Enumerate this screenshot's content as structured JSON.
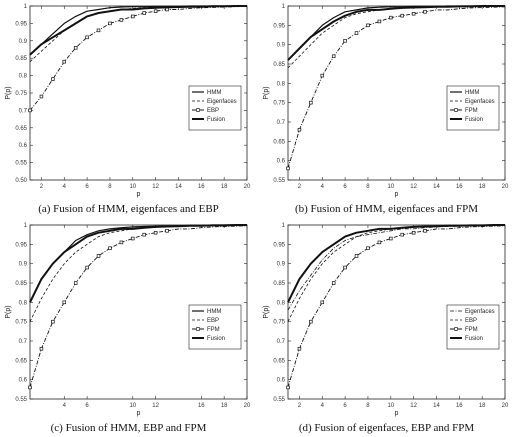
{
  "chart_data": [
    {
      "type": "line",
      "caption": "(a) Fusion of HMM, eigenfaces and EBP",
      "xlabel": "p",
      "ylabel": "P(p)",
      "xlim": [
        1,
        20
      ],
      "ylim": [
        0.5,
        1
      ],
      "xticks": [
        2,
        4,
        6,
        8,
        10,
        12,
        14,
        16,
        18,
        20
      ],
      "xtick_labels": [
        "2",
        "4",
        "6",
        "8",
        "10",
        "12",
        "14",
        "16",
        "18",
        "20"
      ],
      "yticks": [
        0.5,
        0.55,
        0.6,
        0.65,
        0.7,
        0.75,
        0.8,
        0.85,
        0.9,
        0.95,
        1
      ],
      "ytick_labels": [
        "0.50",
        "0.55",
        "0.6",
        "0.65",
        "0.7",
        "0.75",
        "0.8",
        "0.85",
        "0.9",
        "0.95",
        "1"
      ],
      "legend_position": "lower-right",
      "x": [
        1,
        2,
        3,
        4,
        5,
        6,
        7,
        8,
        9,
        10,
        11,
        12,
        13,
        14,
        15,
        16,
        17,
        18,
        19,
        20
      ],
      "series": [
        {
          "name": "HMM",
          "style": "solid",
          "width": 1.2,
          "marker": "none",
          "values": [
            0.86,
            0.89,
            0.92,
            0.95,
            0.97,
            0.985,
            0.99,
            0.995,
            0.997,
            0.998,
            0.998,
            0.999,
            0.999,
            0.999,
            1,
            1,
            1,
            1,
            1,
            1
          ]
        },
        {
          "name": "Eigenfaces",
          "style": "dashed",
          "width": 0.8,
          "marker": "none",
          "values": [
            0.84,
            0.87,
            0.9,
            0.93,
            0.95,
            0.97,
            0.98,
            0.985,
            0.99,
            0.993,
            0.995,
            0.996,
            0.997,
            0.998,
            0.998,
            0.999,
            0.999,
            1,
            1,
            1
          ]
        },
        {
          "name": "EBP",
          "style": "dashdot",
          "width": 0.9,
          "marker": "square",
          "values": [
            0.7,
            0.74,
            0.79,
            0.84,
            0.88,
            0.91,
            0.93,
            0.95,
            0.96,
            0.97,
            0.98,
            0.985,
            0.99,
            0.99,
            0.993,
            0.995,
            0.996,
            0.997,
            0.998,
            0.999
          ]
        },
        {
          "name": "Fusion",
          "style": "solid",
          "width": 2,
          "marker": "none",
          "values": [
            0.86,
            0.89,
            0.91,
            0.93,
            0.95,
            0.97,
            0.98,
            0.985,
            0.99,
            0.99,
            0.993,
            0.995,
            0.996,
            0.997,
            0.998,
            0.998,
            0.999,
            0.999,
            1,
            1
          ]
        }
      ]
    },
    {
      "type": "line",
      "caption": "(b) Fusion of HMM, eigenfaces and FPM",
      "xlabel": "p",
      "ylabel": "P(p)",
      "xlim": [
        1,
        20
      ],
      "ylim": [
        0.55,
        1
      ],
      "xticks": [
        2,
        4,
        6,
        8,
        10,
        12,
        14,
        16,
        18,
        20
      ],
      "xtick_labels": [
        "2",
        "4",
        "6",
        "8",
        "10",
        "12",
        "14",
        "16",
        "18",
        "20"
      ],
      "yticks": [
        0.55,
        0.6,
        0.65,
        0.7,
        0.75,
        0.8,
        0.85,
        0.9,
        0.95,
        1
      ],
      "ytick_labels": [
        "0.55",
        "0.6",
        "0.65",
        "0.7",
        "0.75",
        "0.8",
        "0.85",
        "0.9",
        "0.95",
        "1"
      ],
      "legend_position": "lower-right",
      "x": [
        1,
        2,
        3,
        4,
        5,
        6,
        7,
        8,
        9,
        10,
        11,
        12,
        13,
        14,
        15,
        16,
        17,
        18,
        19,
        20
      ],
      "series": [
        {
          "name": "HMM",
          "style": "solid",
          "width": 1.2,
          "marker": "none",
          "values": [
            0.86,
            0.89,
            0.92,
            0.95,
            0.97,
            0.985,
            0.99,
            0.995,
            0.997,
            0.998,
            0.998,
            0.999,
            0.999,
            0.999,
            1,
            1,
            1,
            1,
            1,
            1
          ]
        },
        {
          "name": "Eigenfaces",
          "style": "dashed",
          "width": 0.8,
          "marker": "none",
          "values": [
            0.84,
            0.87,
            0.9,
            0.93,
            0.95,
            0.97,
            0.98,
            0.985,
            0.99,
            0.993,
            0.995,
            0.996,
            0.997,
            0.998,
            0.998,
            0.999,
            0.999,
            1,
            1,
            1
          ]
        },
        {
          "name": "FPM",
          "style": "dashdot",
          "width": 0.9,
          "marker": "square",
          "values": [
            0.58,
            0.68,
            0.75,
            0.82,
            0.87,
            0.91,
            0.93,
            0.95,
            0.96,
            0.97,
            0.975,
            0.98,
            0.985,
            0.99,
            0.99,
            0.993,
            0.995,
            0.996,
            0.997,
            0.998
          ]
        },
        {
          "name": "Fusion",
          "style": "solid",
          "width": 2,
          "marker": "none",
          "values": [
            0.86,
            0.89,
            0.92,
            0.94,
            0.96,
            0.975,
            0.985,
            0.99,
            0.99,
            0.993,
            0.995,
            0.996,
            0.997,
            0.998,
            0.998,
            0.999,
            0.999,
            1,
            1,
            1
          ]
        }
      ]
    },
    {
      "type": "line",
      "caption": "(c) Fusion of HMM, EBP and FPM",
      "xlabel": "p",
      "ylabel": "P(p)",
      "xlim": [
        1,
        20
      ],
      "ylim": [
        0.55,
        1
      ],
      "xticks": [
        4,
        6,
        10,
        12,
        16,
        18,
        20
      ],
      "xtick_labels": [
        "4",
        "6",
        "10",
        "12",
        "16",
        "18",
        "20"
      ],
      "yticks": [
        0.55,
        0.6,
        0.65,
        0.7,
        0.75,
        0.8,
        0.85,
        0.9,
        0.95,
        1
      ],
      "ytick_labels": [
        "0.55",
        "0.6",
        "0.65",
        "0.7",
        "0.75",
        "0.8",
        "0.85",
        "0.9",
        "0.95",
        "1"
      ],
      "legend_position": "lower-right",
      "x": [
        1,
        2,
        3,
        4,
        5,
        6,
        7,
        8,
        9,
        10,
        11,
        12,
        13,
        14,
        15,
        16,
        17,
        18,
        19,
        20
      ],
      "series": [
        {
          "name": "HMM",
          "style": "solid",
          "width": 1.2,
          "marker": "none",
          "values": [
            0.8,
            0.86,
            0.9,
            0.93,
            0.96,
            0.975,
            0.985,
            0.99,
            0.993,
            0.995,
            0.996,
            0.997,
            0.998,
            0.998,
            0.999,
            0.999,
            1,
            1,
            1,
            1
          ]
        },
        {
          "name": "EBP",
          "style": "dashed",
          "width": 0.8,
          "marker": "none",
          "values": [
            0.75,
            0.81,
            0.86,
            0.9,
            0.93,
            0.95,
            0.97,
            0.98,
            0.985,
            0.99,
            0.993,
            0.995,
            0.996,
            0.997,
            0.998,
            0.998,
            0.999,
            0.999,
            1,
            1
          ]
        },
        {
          "name": "FPM",
          "style": "dashdot",
          "width": 0.9,
          "marker": "square",
          "values": [
            0.58,
            0.68,
            0.75,
            0.8,
            0.85,
            0.89,
            0.92,
            0.94,
            0.955,
            0.965,
            0.975,
            0.98,
            0.985,
            0.99,
            0.99,
            0.993,
            0.995,
            0.996,
            0.997,
            0.998
          ]
        },
        {
          "name": "Fusion",
          "style": "solid",
          "width": 2,
          "marker": "none",
          "values": [
            0.8,
            0.86,
            0.9,
            0.93,
            0.95,
            0.97,
            0.98,
            0.985,
            0.99,
            0.99,
            0.993,
            0.995,
            0.996,
            0.997,
            0.998,
            0.998,
            0.999,
            0.999,
            1,
            1
          ]
        }
      ]
    },
    {
      "type": "line",
      "caption": "(d) Fusion of eigenfaces, EBP and FPM",
      "xlabel": "p",
      "ylabel": "P(p)",
      "xlim": [
        1,
        20
      ],
      "ylim": [
        0.55,
        1
      ],
      "xticks": [
        2,
        4,
        6,
        8,
        10,
        12,
        14,
        16,
        18,
        20
      ],
      "xtick_labels": [
        "2",
        "4",
        "6",
        "8",
        "10",
        "12",
        "14",
        "16",
        "18",
        "20"
      ],
      "yticks": [
        0.55,
        0.6,
        0.65,
        0.7,
        0.75,
        0.8,
        0.85,
        0.9,
        0.95,
        1
      ],
      "ytick_labels": [
        "0.55",
        "0.6",
        "0.65",
        "0.7",
        "0.75",
        "0.8",
        "0.85",
        "0.9",
        "0.95",
        "1"
      ],
      "legend_position": "lower-right",
      "x": [
        1,
        2,
        3,
        4,
        5,
        6,
        7,
        8,
        9,
        10,
        11,
        12,
        13,
        14,
        15,
        16,
        17,
        18,
        19,
        20
      ],
      "series": [
        {
          "name": "Eigenfaces",
          "style": "dashdot",
          "width": 0.8,
          "marker": "none",
          "values": [
            0.78,
            0.83,
            0.87,
            0.91,
            0.94,
            0.96,
            0.97,
            0.975,
            0.98,
            0.985,
            0.99,
            0.99,
            0.993,
            0.995,
            0.996,
            0.997,
            0.998,
            0.998,
            0.999,
            1
          ]
        },
        {
          "name": "EBP",
          "style": "dashed",
          "width": 0.8,
          "marker": "none",
          "values": [
            0.75,
            0.81,
            0.86,
            0.9,
            0.93,
            0.95,
            0.97,
            0.98,
            0.985,
            0.99,
            0.993,
            0.995,
            0.996,
            0.997,
            0.998,
            0.998,
            0.999,
            0.999,
            1,
            1
          ]
        },
        {
          "name": "FPM",
          "style": "dashdot",
          "width": 0.9,
          "marker": "square",
          "values": [
            0.58,
            0.68,
            0.75,
            0.8,
            0.85,
            0.89,
            0.92,
            0.94,
            0.955,
            0.965,
            0.975,
            0.98,
            0.985,
            0.99,
            0.99,
            0.993,
            0.995,
            0.996,
            0.997,
            0.998
          ]
        },
        {
          "name": "Fusion",
          "style": "solid",
          "width": 2,
          "marker": "none",
          "values": [
            0.8,
            0.86,
            0.9,
            0.93,
            0.95,
            0.97,
            0.98,
            0.985,
            0.99,
            0.99,
            0.993,
            0.995,
            0.996,
            0.997,
            0.998,
            0.998,
            0.999,
            0.999,
            1,
            1
          ]
        }
      ]
    }
  ]
}
